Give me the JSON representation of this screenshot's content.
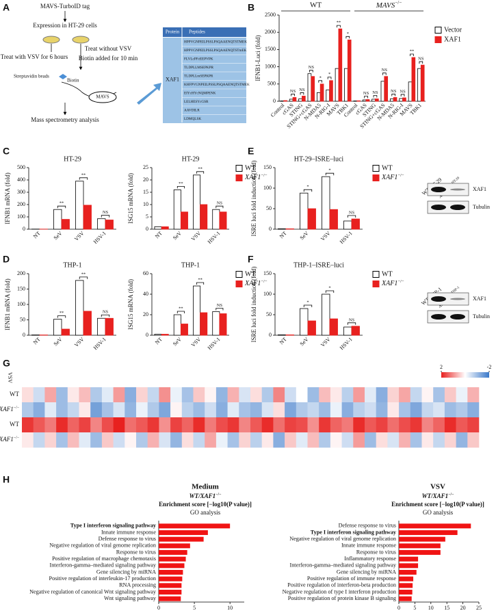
{
  "panel_labels": [
    "A",
    "B",
    "C",
    "D",
    "E",
    "F",
    "G",
    "H"
  ],
  "panel_a": {
    "steps": [
      "MAVS-TurboID tag",
      "Expression in HT-29 cells",
      "Treat with VSV for 6 hours",
      "Treat without VSV",
      "Biotin added for 10 min",
      "Streptavidin beads",
      "Biotin",
      "MAVS",
      "Mass spectrometry analysis"
    ],
    "table": {
      "header": [
        "Protein",
        "Peptides"
      ],
      "protein": "XAF1",
      "peptides": [
        "HPPVGNPEILPSSLPSQAAENQTSTMEK",
        "HPPVGNPEILPSSLPSQAAENQTSTmEK",
        "FLVLcPFcEEPVPK",
        "TLDPLLMSEPKPR",
        "TLDPLLmSEPKPR",
        "KHFPVGNPEILPSSLPSQAAENQTSTMEK",
        "EIYcHYcNQMPENK",
        "LELHESYcGSR",
        "AAVDILR",
        "LDMQLSK"
      ]
    }
  },
  "chart_data": [
    {
      "type": "bar",
      "group_labels": [
        "WT",
        "MAVS−/−"
      ],
      "categories": [
        "Control",
        "cGAS",
        "STING",
        "STING+cGAS",
        "N-MDA5",
        "N-RIG-I",
        "MAVS",
        "TBK1",
        "Control",
        "cGAS",
        "STING",
        "STING+cGAS",
        "N-MDA5",
        "N-RIG-I",
        "MAVS",
        "TBK1"
      ],
      "ylabel": "IFNB1-Luci (fold)",
      "ylim": [
        0,
        2500
      ],
      "yticks": [
        0,
        500,
        1000,
        1500,
        2000,
        2500
      ],
      "legend": "right",
      "series": [
        {
          "name": "Vector",
          "color": "#ffffff",
          "edgecolor": "#000000",
          "values": [
            10,
            60,
            70,
            800,
            250,
            330,
            950,
            950,
            10,
            40,
            60,
            580,
            70,
            80,
            560,
            950
          ]
        },
        {
          "name": "XAF1",
          "color": "#e8211f",
          "edgecolor": "#e8211f",
          "values": [
            20,
            110,
            150,
            720,
            500,
            600,
            2100,
            1780,
            15,
            50,
            70,
            720,
            110,
            100,
            1270,
            1050
          ]
        }
      ],
      "annotations": [
        null,
        "NS",
        "NS",
        "NS",
        "*",
        "*",
        "**",
        "*",
        null,
        "NS",
        "NS",
        "NS",
        "NS",
        "NS",
        "**",
        "NS"
      ]
    },
    {
      "type": "bar",
      "title": "HT-29",
      "categories": [
        "NT",
        "SeV",
        "VSV",
        "HSV-1"
      ],
      "ylabel": "IFNB1 mRNA (fold)",
      "ylim": [
        0,
        500
      ],
      "yticks": [
        0,
        100,
        200,
        300,
        400,
        500
      ],
      "series": [
        {
          "color": "#ffffff",
          "edgecolor": "#000000",
          "values": [
            1,
            160,
            390,
            85
          ]
        },
        {
          "color": "#e8211f",
          "edgecolor": "#e8211f",
          "values": [
            1,
            80,
            195,
            75
          ]
        }
      ],
      "annotations": [
        null,
        "**",
        "**",
        "NS"
      ]
    },
    {
      "type": "bar",
      "title": "HT-29",
      "categories": [
        "NT",
        "SeV",
        "VSV",
        "HSV-1"
      ],
      "ylabel": "ISG15 mRNA (fold)",
      "ylim": [
        0,
        25
      ],
      "yticks": [
        0,
        5,
        10,
        15,
        20,
        25
      ],
      "legend": "right",
      "series": [
        {
          "name": "WT",
          "color": "#ffffff",
          "edgecolor": "#000000",
          "values": [
            1,
            16,
            22,
            8
          ]
        },
        {
          "name": "XAF1−/−",
          "color": "#e8211f",
          "edgecolor": "#e8211f",
          "values": [
            1,
            7,
            10,
            7
          ]
        }
      ],
      "annotations": [
        null,
        "**",
        "**",
        "NS"
      ]
    },
    {
      "type": "bar",
      "title": "THP-1",
      "categories": [
        "NT",
        "SeV",
        "VSV",
        "HSV-1"
      ],
      "ylabel": "IFNB1 mRNA (fold)",
      "ylim": [
        0,
        200
      ],
      "yticks": [
        0,
        50,
        100,
        150,
        200
      ],
      "series": [
        {
          "color": "#ffffff",
          "edgecolor": "#000000",
          "values": [
            1,
            52,
            178,
            55
          ]
        },
        {
          "color": "#e8211f",
          "edgecolor": "#e8211f",
          "values": [
            1,
            20,
            78,
            55
          ]
        }
      ],
      "annotations": [
        null,
        "**",
        "**",
        "NS"
      ]
    },
    {
      "type": "bar",
      "title": "THP-1",
      "categories": [
        "NT",
        "SeV",
        "VSV",
        "HSV-1"
      ],
      "ylabel": "ISG15 mRNA (fold)",
      "ylim": [
        0,
        60
      ],
      "yticks": [
        0,
        20,
        40,
        60
      ],
      "legend": "right",
      "series": [
        {
          "name": "WT",
          "color": "#ffffff",
          "edgecolor": "#000000",
          "values": [
            1,
            20,
            48,
            23
          ]
        },
        {
          "name": "XAF1−/−",
          "color": "#e8211f",
          "edgecolor": "#e8211f",
          "values": [
            1,
            11,
            22,
            21
          ]
        }
      ],
      "annotations": [
        null,
        "**",
        "**",
        "NS"
      ]
    },
    {
      "type": "bar",
      "title": "HT-29–ISRE–luci",
      "categories": [
        "NT",
        "SeV",
        "VSV",
        "HSV-1"
      ],
      "ylabel": "ISRE luci fold induction (fold)",
      "ylim": [
        0,
        150
      ],
      "yticks": [
        0,
        50,
        100,
        150
      ],
      "legend": "right",
      "series": [
        {
          "name": "WT",
          "color": "#ffffff",
          "edgecolor": "#000000",
          "values": [
            1,
            88,
            128,
            20
          ]
        },
        {
          "name": "XAF1−/−",
          "color": "#e8211f",
          "edgecolor": "#e8211f",
          "values": [
            1,
            50,
            48,
            25
          ]
        }
      ],
      "annotations": [
        null,
        "*",
        "*",
        "NS"
      ],
      "blot": {
        "lanes": [
          "WT HT-29",
          "XAF1−/− HT-29"
        ],
        "bands": [
          "XAF1",
          "Tubulin"
        ]
      }
    },
    {
      "type": "bar",
      "title": "THP-1–ISRE–luci",
      "categories": [
        "NT",
        "SeV",
        "VSV",
        "HSV-1"
      ],
      "ylabel": "ISRE luci fold induction (fold)",
      "ylim": [
        0,
        150
      ],
      "yticks": [
        0,
        50,
        100,
        150
      ],
      "legend": "right",
      "series": [
        {
          "name": "WT",
          "color": "#ffffff",
          "edgecolor": "#000000",
          "values": [
            1,
            65,
            100,
            20
          ]
        },
        {
          "name": "XAF1−/−",
          "color": "#e8211f",
          "edgecolor": "#e8211f",
          "values": [
            1,
            35,
            40,
            22
          ]
        }
      ],
      "annotations": [
        null,
        "*",
        "*",
        "NS"
      ],
      "blot": {
        "lanes": [
          "WT THP-1",
          "XAF1−/− THP-1"
        ],
        "bands": [
          "XAF1",
          "Tubulin"
        ]
      }
    },
    {
      "type": "heatmap",
      "group_label": "VSV",
      "rows": [
        "WT",
        "XAF1−/−",
        "WT",
        "XAF1−/−"
      ],
      "clim": [
        -2,
        2
      ],
      "colorbar_ticks": [
        2,
        -2
      ],
      "values": [
        [
          0.3,
          -0.5,
          0.8,
          -1.0,
          0.2,
          0.6,
          -0.8,
          -0.3,
          0.9,
          -1.2,
          0.4,
          -0.6,
          1.0,
          -0.2,
          -0.9,
          0.5,
          0.1,
          -1.1,
          0.7,
          -0.4,
          0.3,
          -0.8,
          1.1,
          -0.5,
          0.0,
          -1.0,
          0.6,
          0.2,
          -0.7,
          0.9,
          -0.3,
          -1.2,
          0.4,
          0.8,
          -0.6,
          0.1,
          -0.9,
          0.5,
          -0.2,
          0.7
        ],
        [
          -0.8,
          -1.2,
          -0.3,
          -1.0,
          -0.6,
          0.2,
          -1.4,
          -0.9,
          -0.4,
          -1.1,
          -0.2,
          -0.8,
          -1.3,
          0.1,
          -0.7,
          -1.0,
          -0.5,
          -1.2,
          -0.3,
          -0.9,
          -1.1,
          -0.4,
          0.3,
          -1.3,
          -0.8,
          -0.6,
          -1.0,
          -0.2,
          -1.2,
          -0.7,
          -0.5,
          -1.1,
          0.2,
          -0.9,
          -1.3,
          -0.6,
          -0.4,
          -1.0,
          -0.8,
          -1.2
        ],
        [
          1.8,
          1.5,
          1.2,
          1.9,
          1.4,
          1.7,
          1.1,
          1.6,
          2.0,
          1.3,
          1.5,
          1.8,
          1.0,
          1.7,
          1.4,
          1.9,
          1.2,
          1.6,
          1.8,
          1.1,
          1.5,
          1.9,
          1.3,
          1.7,
          1.6,
          1.0,
          1.8,
          1.4,
          1.2,
          1.9,
          1.5,
          1.7,
          1.3,
          1.6,
          1.8,
          1.1,
          1.4,
          1.9,
          1.5,
          1.7
        ],
        [
          0.2,
          -0.6,
          0.4,
          -0.9,
          0.6,
          -0.3,
          -1.0,
          0.5,
          -0.5,
          0.1,
          -0.8,
          0.7,
          -0.4,
          -1.1,
          0.3,
          -0.6,
          0.8,
          -0.2,
          -0.9,
          0.4,
          -0.7,
          0.2,
          -1.2,
          0.5,
          -0.3,
          0.6,
          -0.8,
          0.1,
          -0.5,
          0.9,
          -1.0,
          0.3,
          -0.4,
          0.7,
          -0.9,
          0.2,
          -0.6,
          0.4,
          -1.1,
          0.5
        ]
      ]
    },
    {
      "type": "barh",
      "title": "Medium",
      "subtitle": "WT/XAF1−/−",
      "xlabel": "Enrichment score [−log10(P value)]",
      "caption": "GO analysis",
      "color": "#f01414",
      "bold_index": 0,
      "categories": [
        "Type I interferon signaling pathway",
        "Innate immune response",
        "Defense response to virus",
        "Negative regulation of viral genome replication",
        "Response to virus",
        "Positive regulation of macrophage chemotaxis",
        "Interferon-gamma–mediated signaling pathway",
        "Gene silencing by miRNA",
        "Positive regulation of interleukin-17 production",
        "RNA processing",
        "Negative regulation of canonical Wnt signaling pathway",
        "Wnt signaling pathway"
      ],
      "values": [
        10,
        6.9,
        6.3,
        4.4,
        4.0,
        3.8,
        3.6,
        3.4,
        3.3,
        3.2,
        3.2,
        3.1
      ],
      "xlim": [
        0,
        12
      ],
      "xticks": [
        0,
        5,
        10
      ]
    },
    {
      "type": "barh",
      "title": "VSV",
      "subtitle": "WT/XAF1−/−",
      "xlabel": "Enrichment score [−log10(P value)]",
      "caption": "GO analysis",
      "color": "#f01414",
      "bold_index": 1,
      "categories": [
        "Defense response to virus",
        "Type I interferon signaling pathway",
        "Negative regulation of viral genome replication",
        "Innate immune response",
        "Response to virus",
        "Inflammatory response",
        "Interferon-gamma–mediated signaling pathway",
        "Gene silencing by miRNA",
        "Positive regulation of immune response",
        "Positive regulation of interferon-beta production",
        "Negative regulation of type I interferon production",
        "Positive regulation of protein kinase B signaling"
      ],
      "values": [
        22.5,
        18.3,
        14.5,
        13,
        13,
        6,
        6,
        5.5,
        4.5,
        4.3,
        4.2,
        4.0
      ],
      "xlim": [
        0,
        25
      ],
      "xticks": [
        0,
        5,
        10,
        15,
        20,
        25
      ]
    }
  ]
}
